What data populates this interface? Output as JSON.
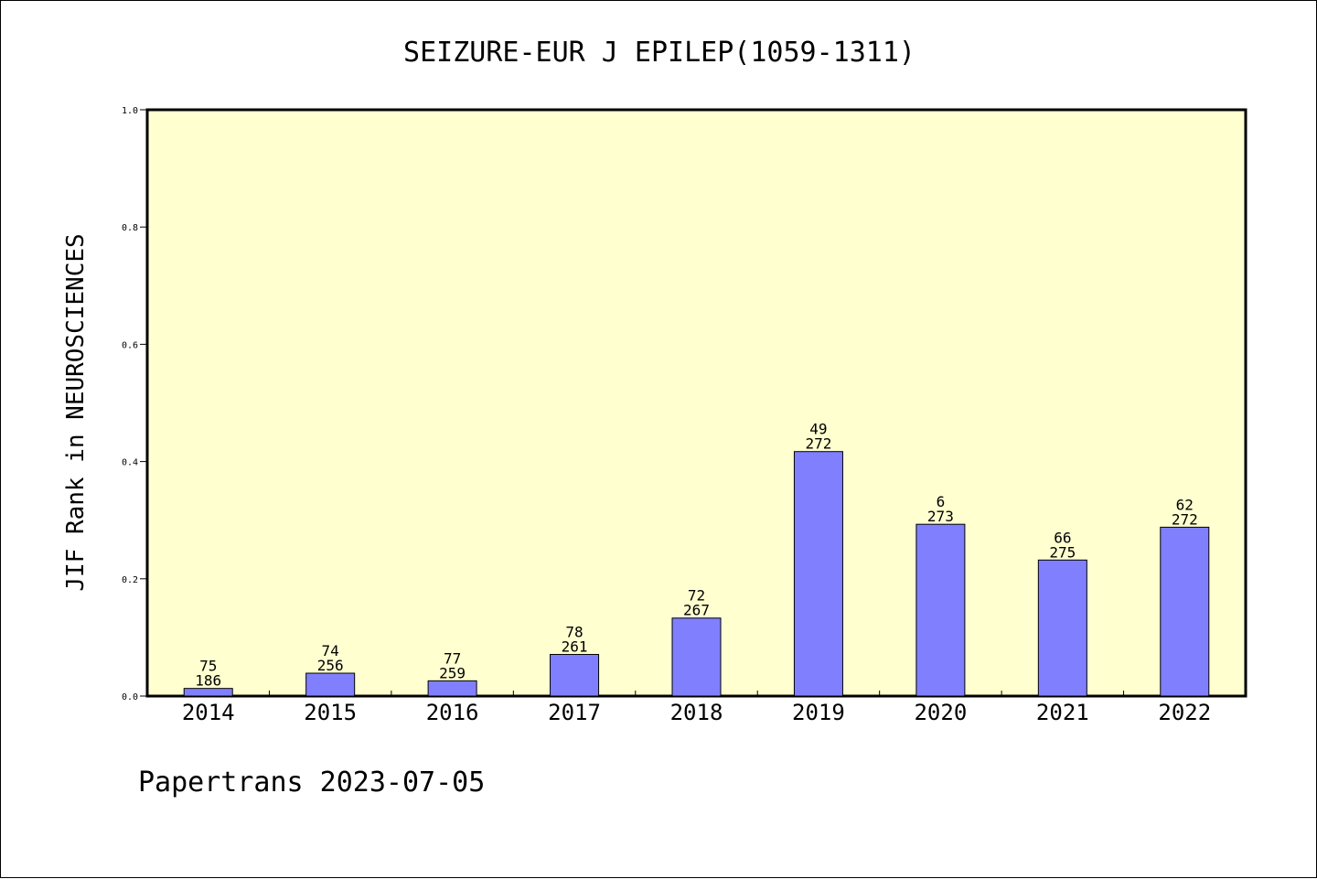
{
  "chart_data": {
    "type": "bar",
    "title": "SEIZURE-EUR J EPILEP(1059-1311)",
    "ylabel": "JIF Rank in NEUROSCIENCES",
    "xlabel": "",
    "ylim": [
      0,
      1.0
    ],
    "yticks": [
      "0.0",
      "0.2",
      "0.4",
      "0.6",
      "0.8",
      "1.0"
    ],
    "categories": [
      "2014",
      "2015",
      "2016",
      "2017",
      "2018",
      "2019",
      "2020",
      "2021",
      "2022"
    ],
    "values": [
      0.013,
      0.039,
      0.026,
      0.071,
      0.133,
      0.417,
      0.293,
      0.232,
      0.288
    ],
    "labels_top": [
      "75",
      "74",
      "77",
      "78",
      "72",
      "49",
      "6",
      "66",
      "62"
    ],
    "labels_bottom": [
      "186",
      "256",
      "259",
      "261",
      "267",
      "272",
      "273",
      "275",
      "272"
    ],
    "grid": false,
    "colors": {
      "plot_bg": "#ffffd0",
      "bar_fill": "#8080ff",
      "bar_stroke": "#000000"
    }
  },
  "footer": {
    "text": "Papertrans 2023-07-05"
  }
}
